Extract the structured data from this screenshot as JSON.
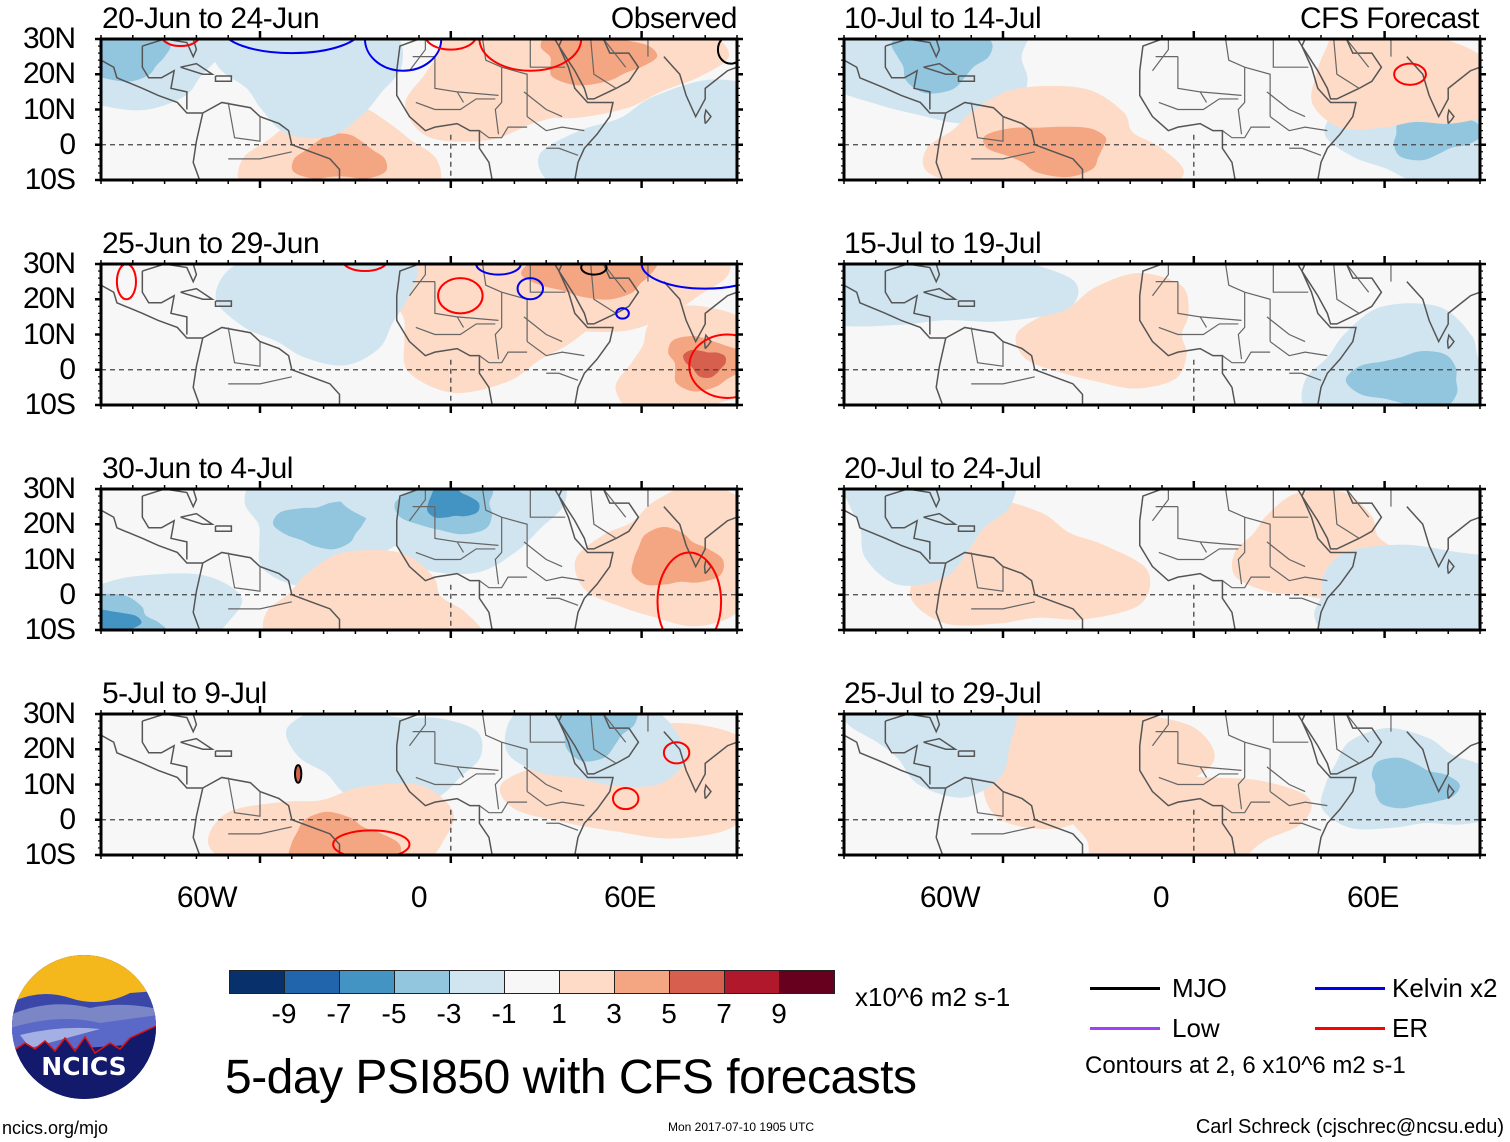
{
  "title": "5-day PSI850 with CFS forecasts",
  "footer": {
    "left": "ncics.org/mjo",
    "middle": "Mon 2017-07-10 1905 UTC",
    "right": "Carl Schreck (cjschrec@ncsu.edu)"
  },
  "logo": {
    "text": "NCICS"
  },
  "columns": {
    "observed_label": "Observed",
    "forecast_label": "CFS Forecast"
  },
  "axes": {
    "lat_labels": [
      "30N",
      "20N",
      "10N",
      "0",
      "10S"
    ],
    "lon_labels": [
      "60W",
      "0",
      "60E"
    ]
  },
  "colorbar": {
    "units": "x10^6 m2 s-1",
    "ticks": [
      "-9",
      "-7",
      "-5",
      "-3",
      "-1",
      "1",
      "3",
      "5",
      "7",
      "9"
    ],
    "colors": [
      "#08306b",
      "#2166ac",
      "#4393c3",
      "#92c5de",
      "#d1e5f0",
      "#f7f7f7",
      "#fddbc7",
      "#f4a582",
      "#d6604d",
      "#b2182b",
      "#67001f"
    ]
  },
  "legend": {
    "items": [
      {
        "label": "MJO",
        "color": "#000000"
      },
      {
        "label": "Kelvin x2",
        "color": "#0000ee"
      },
      {
        "label": "Low",
        "color": "#a040ff"
      },
      {
        "label": "ER",
        "color": "#ff0000"
      }
    ],
    "contour_note": "Contours at 2, 6 x10^6 m2 s-1"
  },
  "chart_data": {
    "type": "heatmap",
    "title": "5-day PSI850 with CFS forecasts",
    "variable": "850-hPa streamfunction anomaly",
    "units": "x10^6 m2 s-1",
    "lon_range": [
      -110,
      90
    ],
    "lat_range": [
      -10,
      30
    ],
    "xticks": [
      "60W",
      "0",
      "60E"
    ],
    "yticks": [
      "30N",
      "20N",
      "10N",
      "0",
      "10S"
    ],
    "color_levels": [
      -9,
      -7,
      -5,
      -3,
      -1,
      1,
      3,
      5,
      7,
      9
    ],
    "contour_levels": [
      2,
      6
    ],
    "panels": [
      {
        "column": "Observed",
        "period": "20-Jun to 24-Jun",
        "features": [
          {
            "sign": "positive",
            "level": 3,
            "region": "northern South America / equatorial Atlantic",
            "lon": -35,
            "lat": -4
          },
          {
            "sign": "positive",
            "level": 1,
            "region": "North Africa / Sahara",
            "lon": 20,
            "lat": 20
          },
          {
            "sign": "positive",
            "level": 3,
            "region": "Arabia",
            "lon": 45,
            "lat": 25
          },
          {
            "sign": "negative",
            "level": -1,
            "region": "central North Atlantic",
            "lon": -45,
            "lat": 22
          },
          {
            "sign": "negative",
            "level": -3,
            "region": "eastern Pacific edge",
            "lon": -105,
            "lat": 25
          },
          {
            "sign": "negative",
            "level": -1,
            "region": "equatorial Indian Ocean",
            "lon": 72,
            "lat": -3
          }
        ],
        "contours": [
          "Kelvin x2",
          "ER",
          "MJO"
        ]
      },
      {
        "column": "Observed",
        "period": "25-Jun to 29-Jun",
        "features": [
          {
            "sign": "positive",
            "level": 5,
            "region": "equatorial Indian Ocean",
            "lon": 80,
            "lat": 2
          },
          {
            "sign": "positive",
            "level": 1,
            "region": "Sahel / North Africa",
            "lon": 10,
            "lat": 15
          },
          {
            "sign": "positive",
            "level": 3,
            "region": "Arabia",
            "lon": 45,
            "lat": 27
          },
          {
            "sign": "negative",
            "level": -1,
            "region": "central North Atlantic",
            "lon": -40,
            "lat": 20
          }
        ],
        "contours": [
          "ER",
          "Kelvin x2",
          "MJO"
        ]
      },
      {
        "column": "Observed",
        "period": "30-Jun to 4-Jul",
        "features": [
          {
            "sign": "negative",
            "level": -3,
            "region": "central North Atlantic",
            "lon": -40,
            "lat": 20
          },
          {
            "sign": "negative",
            "level": -5,
            "region": "Algeria / Sahara",
            "lon": 0,
            "lat": 26
          },
          {
            "sign": "negative",
            "level": -5,
            "region": "eastern Pacific",
            "lon": -108,
            "lat": -8
          },
          {
            "sign": "positive",
            "level": 3,
            "region": "Arabian Sea / India",
            "lon": 70,
            "lat": 10
          },
          {
            "sign": "positive",
            "level": 1,
            "region": "equatorial Atlantic",
            "lon": -25,
            "lat": -5
          }
        ],
        "contours": [
          "ER"
        ]
      },
      {
        "column": "Observed",
        "period": "5-Jul to 9-Jul",
        "features": [
          {
            "sign": "negative",
            "level": -1,
            "region": "tropical North Atlantic / West Africa",
            "lon": -20,
            "lat": 18
          },
          {
            "sign": "positive",
            "level": 3,
            "region": "Brazil / equatorial Atlantic",
            "lon": -35,
            "lat": -7
          },
          {
            "sign": "positive",
            "level": 1,
            "region": "Arabian Sea",
            "lon": 60,
            "lat": 10
          },
          {
            "sign": "negative",
            "level": -3,
            "region": "Arabia",
            "lon": 45,
            "lat": 27
          }
        ],
        "contours": [
          "ER",
          "Low"
        ]
      },
      {
        "column": "CFS Forecast",
        "period": "10-Jul to 14-Jul",
        "features": [
          {
            "sign": "negative",
            "level": -3,
            "region": "Arabian Sea to equatorial Indian Ocean",
            "lon": 75,
            "lat": 3
          },
          {
            "sign": "negative",
            "level": -3,
            "region": "western North Atlantic",
            "lon": -80,
            "lat": 25
          },
          {
            "sign": "positive",
            "level": 3,
            "region": "northern Brazil",
            "lon": -45,
            "lat": -1
          },
          {
            "sign": "positive",
            "level": 1,
            "region": "Arabian Sea north",
            "lon": 65,
            "lat": 20
          }
        ],
        "contours": [
          "ER"
        ]
      },
      {
        "column": "CFS Forecast",
        "period": "15-Jul to 19-Jul",
        "features": [
          {
            "sign": "positive",
            "level": 1,
            "region": "tropical North Atlantic / West Africa",
            "lon": -25,
            "lat": 10
          },
          {
            "sign": "negative",
            "level": -3,
            "region": "equatorial Indian Ocean",
            "lon": 68,
            "lat": -3
          },
          {
            "sign": "negative",
            "level": -1,
            "region": "Caribbean",
            "lon": -85,
            "lat": 25
          }
        ],
        "contours": []
      },
      {
        "column": "CFS Forecast",
        "period": "20-Jul to 24-Jul",
        "features": [
          {
            "sign": "positive",
            "level": 1,
            "region": "Horn of Africa",
            "lon": 40,
            "lat": 12
          },
          {
            "sign": "positive",
            "level": 1,
            "region": "Guianas",
            "lon": -55,
            "lat": 7
          },
          {
            "sign": "negative",
            "level": -1,
            "region": "Indian Ocean",
            "lon": 75,
            "lat": 0
          },
          {
            "sign": "negative",
            "level": -1,
            "region": "Caribbean",
            "lon": -85,
            "lat": 25
          }
        ],
        "contours": []
      },
      {
        "column": "CFS Forecast",
        "period": "25-Jul to 29-Jul",
        "features": [
          {
            "sign": "negative",
            "level": -3,
            "region": "Arabian Sea / India",
            "lon": 68,
            "lat": 10
          },
          {
            "sign": "positive",
            "level": 1,
            "region": "eastern tropical Atlantic",
            "lon": -35,
            "lat": 17
          },
          {
            "sign": "positive",
            "level": 1,
            "region": "Gulf of Guinea",
            "lon": -5,
            "lat": -1
          },
          {
            "sign": "negative",
            "level": -1,
            "region": "Caribbean",
            "lon": -80,
            "lat": 28
          }
        ],
        "contours": []
      }
    ]
  }
}
